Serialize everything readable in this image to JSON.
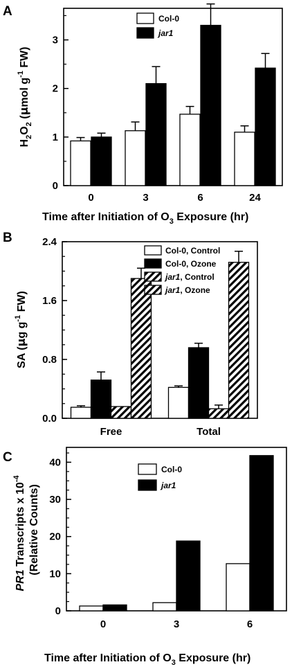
{
  "chart_data": [
    {
      "panel": "A",
      "type": "bar",
      "categories": [
        "0",
        "3",
        "6",
        "24"
      ],
      "xlabel_parts": [
        "Time after Initiation of O",
        "3",
        " Exposure (hr)"
      ],
      "ylabel_parts": [
        "H",
        "2",
        "O",
        "2",
        " (",
        "μ",
        "mol g",
        "-1",
        " FW)"
      ],
      "ylim": [
        0,
        3.65
      ],
      "yticks": [
        0,
        1,
        2,
        3
      ],
      "series": [
        {
          "name": "Col-0",
          "fill": "#ffffff",
          "values": [
            0.92,
            1.13,
            1.47,
            1.1
          ],
          "errors": [
            0.07,
            0.18,
            0.16,
            0.13
          ]
        },
        {
          "name": "jar1",
          "fill": "#000000",
          "italic": true,
          "values": [
            1.0,
            2.1,
            3.3,
            2.42
          ],
          "errors": [
            0.08,
            0.35,
            0.44,
            0.3
          ]
        }
      ],
      "legend": "top-center"
    },
    {
      "panel": "B",
      "type": "bar",
      "categories": [
        "Free",
        "Total"
      ],
      "xlabel_parts": [],
      "ylabel_parts": [
        "SA (",
        "μ",
        "g g",
        "-1",
        " FW)"
      ],
      "ylim": [
        0,
        2.4
      ],
      "yticks": [
        "0.0",
        "0.8",
        "1.6",
        "2.4"
      ],
      "series": [
        {
          "name_parts": [
            "Col-0",
            ", Control"
          ],
          "fill": "#ffffff",
          "values": [
            0.15,
            0.42
          ],
          "errors": [
            0.02,
            0.02
          ]
        },
        {
          "name_parts": [
            "Col-0",
            ", Ozone"
          ],
          "fill": "#000000",
          "values": [
            0.52,
            0.96
          ],
          "errors": [
            0.11,
            0.06
          ]
        },
        {
          "name_parts": [
            "jar1",
            ", Control"
          ],
          "fill": "hatch",
          "italic_first": true,
          "values": [
            0.16,
            0.13
          ],
          "errors": [
            0.0,
            0.05
          ]
        },
        {
          "name_parts": [
            "jar1",
            ", Ozone"
          ],
          "fill": "hatch",
          "italic_first": true,
          "values": [
            1.9,
            2.12
          ],
          "errors": [
            0.14,
            0.15
          ]
        }
      ],
      "legend": "top-right"
    },
    {
      "panel": "C",
      "type": "bar",
      "categories": [
        "0",
        "3",
        "6"
      ],
      "xlabel_parts": [
        "Time after Initiation of O",
        "3",
        " Exposure (hr)"
      ],
      "ylabel_line1_parts": [
        "PR1",
        " Transcripts x 10",
        "-4"
      ],
      "ylabel_line2": "(Relative Counts)",
      "ylim": [
        0,
        44
      ],
      "yticks": [
        0,
        10,
        20,
        30,
        40
      ],
      "series": [
        {
          "name": "Col-0",
          "fill": "#ffffff",
          "values": [
            1.3,
            2.2,
            12.7
          ]
        },
        {
          "name": "jar1",
          "fill": "#000000",
          "italic": true,
          "values": [
            1.6,
            18.8,
            41.8
          ]
        }
      ],
      "legend": "top-center"
    }
  ]
}
